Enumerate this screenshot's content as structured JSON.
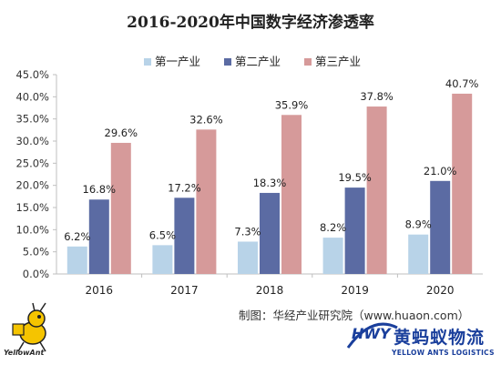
{
  "chart_data": {
    "type": "bar",
    "title": "2016-2020年中国数字经济渗透率",
    "categories": [
      "2016",
      "2017",
      "2018",
      "2019",
      "2020"
    ],
    "series": [
      {
        "name": "第一产业",
        "values": [
          6.2,
          6.5,
          7.3,
          8.2,
          8.9
        ],
        "labels": [
          "6.2%",
          "6.5%",
          "7.3%",
          "8.2%",
          "8.9%"
        ],
        "color": "#b8d3e8"
      },
      {
        "name": "第二产业",
        "values": [
          16.8,
          17.2,
          18.3,
          19.5,
          21.0
        ],
        "labels": [
          "16.8%",
          "17.2%",
          "18.3%",
          "19.5%",
          "21.0%"
        ],
        "color": "#5b6ba3"
      },
      {
        "name": "第三产业",
        "values": [
          29.6,
          32.6,
          35.9,
          37.8,
          40.7
        ],
        "labels": [
          "29.6%",
          "32.6%",
          "35.9%",
          "37.8%",
          "40.7%"
        ],
        "color": "#d69a9a"
      }
    ],
    "y_ticks": [
      "0.0%",
      "5.0%",
      "10.0%",
      "15.0%",
      "20.0%",
      "25.0%",
      "30.0%",
      "35.0%",
      "40.0%",
      "45.0%"
    ],
    "ylim": [
      0,
      45
    ],
    "grid": false,
    "legend_position": "top-center"
  },
  "source": "制图：华经产业研究院（www.huaon.com）",
  "watermark": {
    "left_logo_text": "YellowAnt",
    "brand_cn": "黄蚂蚁物流",
    "brand_en": "YELLOW ANTS LOGISTICS",
    "brand_mark_text": "HWY"
  }
}
